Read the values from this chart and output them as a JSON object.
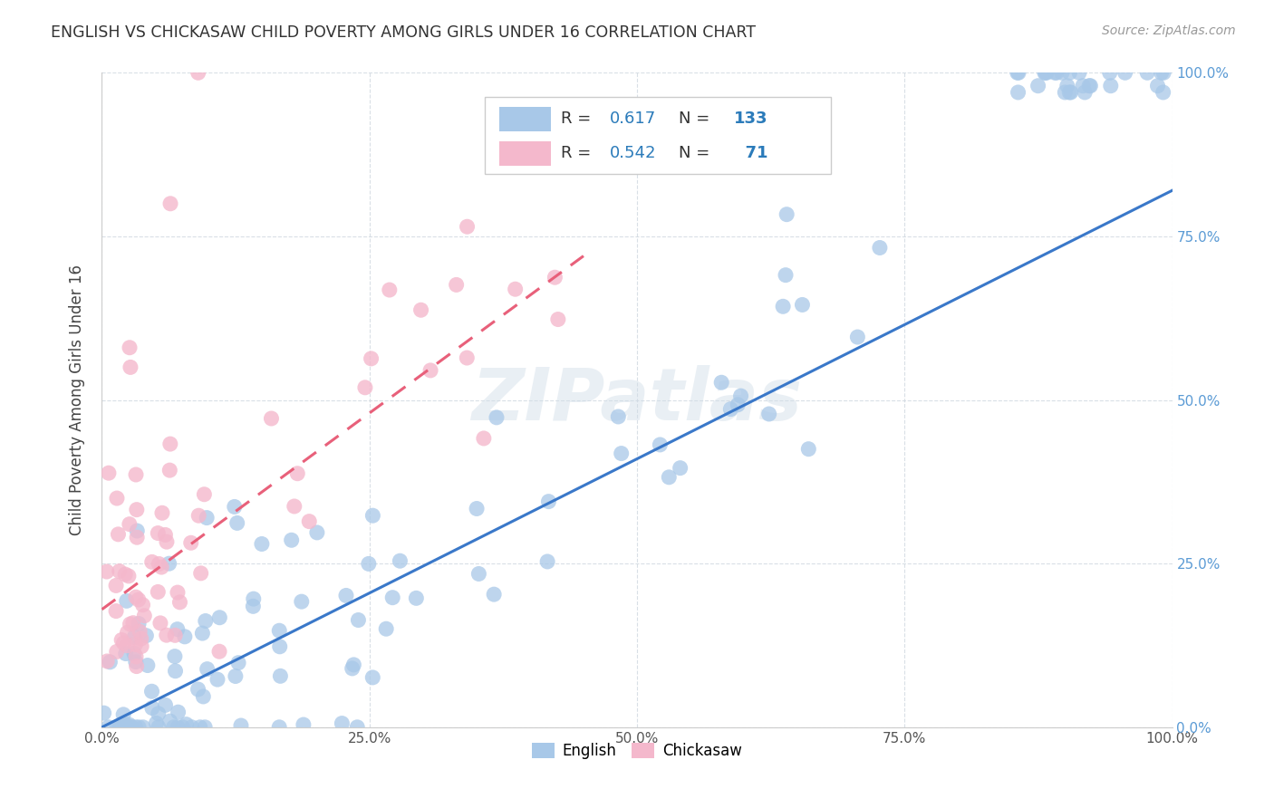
{
  "title": "ENGLISH VS CHICKASAW CHILD POVERTY AMONG GIRLS UNDER 16 CORRELATION CHART",
  "source": "Source: ZipAtlas.com",
  "ylabel": "Child Poverty Among Girls Under 16",
  "xmin": 0.0,
  "xmax": 1.0,
  "ymin": 0.0,
  "ymax": 1.0,
  "english_R": 0.617,
  "english_N": 133,
  "chickasaw_R": 0.542,
  "chickasaw_N": 71,
  "english_color": "#a8c8e8",
  "chickasaw_color": "#f4b8cc",
  "english_line_color": "#3a78c9",
  "chickasaw_line_color": "#e8607a",
  "watermark": "ZIPatlas",
  "ytick_color": "#5b9bd5",
  "xtick_color": "#555555",
  "legend_text_color": "#333333",
  "legend_value_color": "#2b7bba",
  "eng_line_x0": 0.0,
  "eng_line_y0": 0.0,
  "eng_line_x1": 1.0,
  "eng_line_y1": 0.82,
  "chick_line_x0": 0.0,
  "chick_line_y0": 0.18,
  "chick_line_x1": 0.45,
  "chick_line_y1": 0.72
}
